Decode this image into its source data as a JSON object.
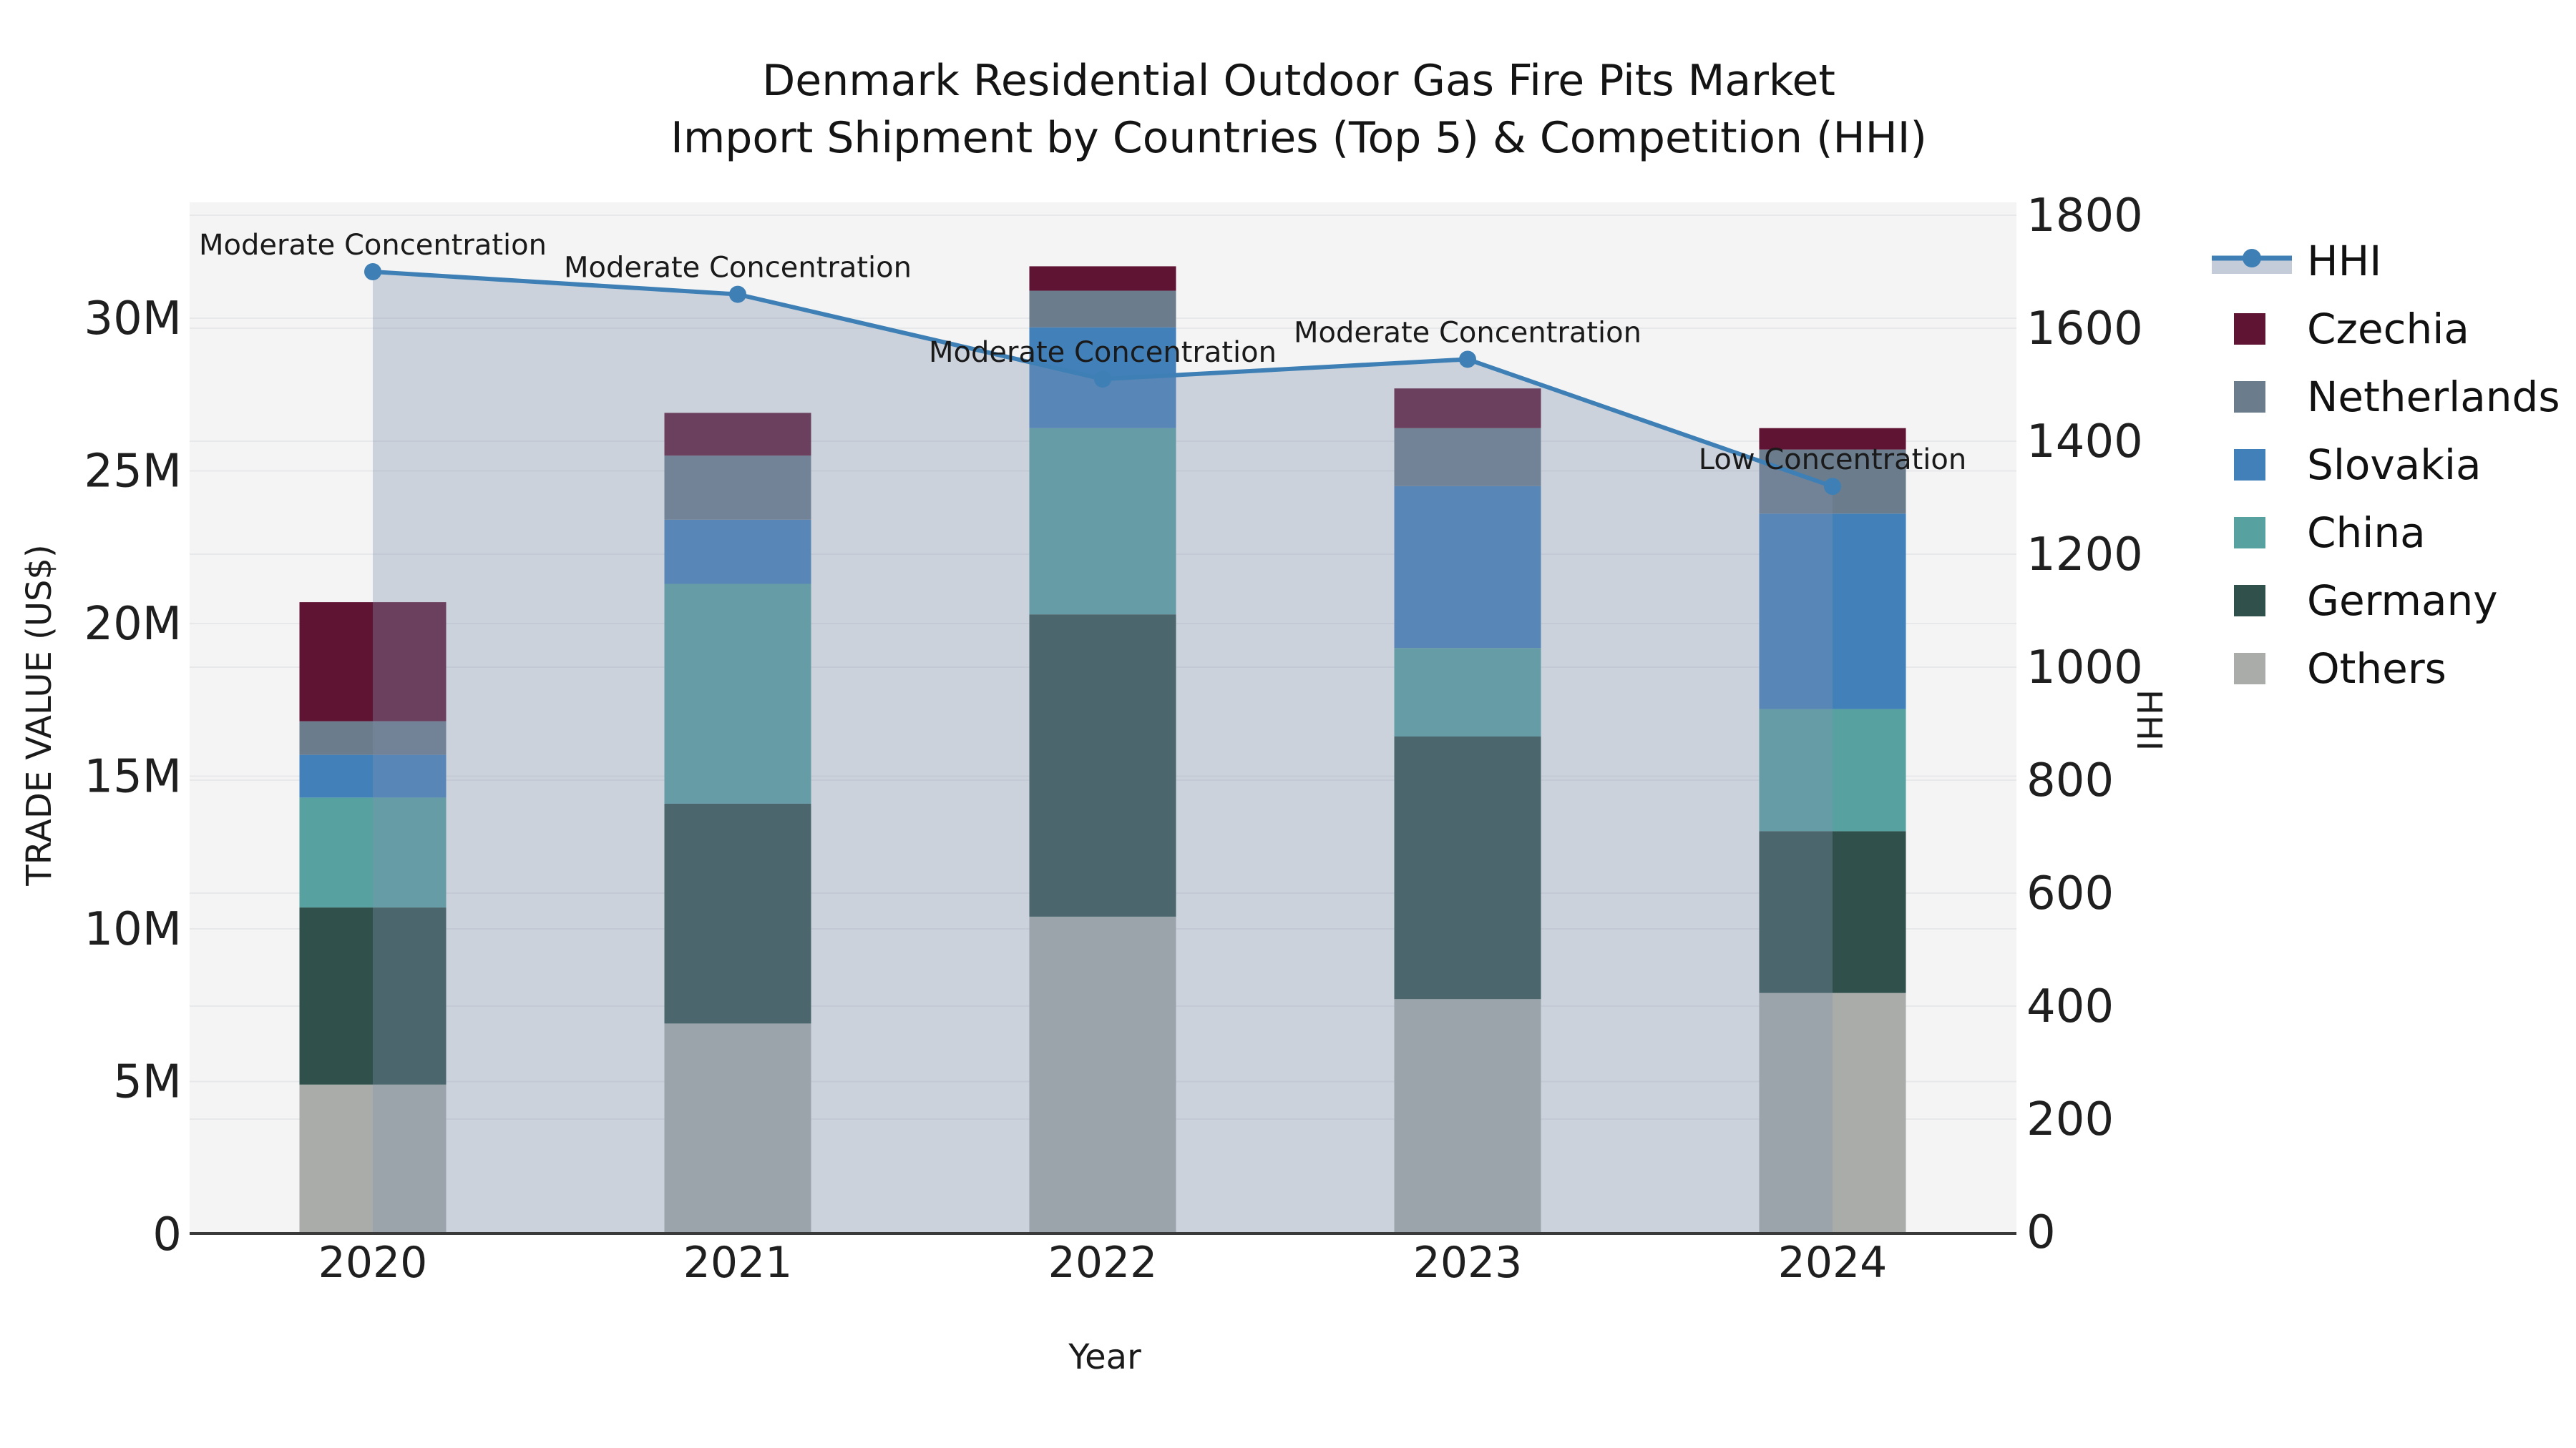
{
  "title": {
    "line1": "Denmark Residential Outdoor Gas Fire Pits Market",
    "line2": "Import Shipment by Countries (Top 5) & Competition (HHI)"
  },
  "axes": {
    "x": {
      "label": "Year",
      "categories": [
        "2020",
        "2021",
        "2022",
        "2023",
        "2024"
      ]
    },
    "y_left": {
      "label": "TRADE VALUE (US$)",
      "tick_labels": [
        "0",
        "5M",
        "10M",
        "15M",
        "20M",
        "25M",
        "30M"
      ],
      "tick_values": [
        0,
        5,
        10,
        15,
        20,
        25,
        30
      ]
    },
    "y_right": {
      "label": "HHI",
      "tick_labels": [
        "0",
        "200",
        "400",
        "600",
        "800",
        "1000",
        "1200",
        "1400",
        "1600",
        "1800"
      ],
      "tick_values": [
        0,
        200,
        400,
        600,
        800,
        1000,
        1200,
        1400,
        1600,
        1800
      ]
    }
  },
  "legend": {
    "items": [
      {
        "label": "HHI",
        "kind": "line",
        "color": "#3E80B5",
        "band_color": "#C5CCD9"
      },
      {
        "label": "Czechia",
        "kind": "patch",
        "color": "#5F1434"
      },
      {
        "label": "Netherlands",
        "kind": "patch",
        "color": "#6B7C8C"
      },
      {
        "label": "Slovakia",
        "kind": "patch",
        "color": "#4280BA"
      },
      {
        "label": "China",
        "kind": "patch",
        "color": "#57A1A0"
      },
      {
        "label": "Germany",
        "kind": "patch",
        "color": "#2F504B"
      },
      {
        "label": "Others",
        "kind": "patch",
        "color": "#A9ACA9"
      }
    ]
  },
  "chart_data": {
    "type": "combo",
    "subtype": "stacked-bar-with-line",
    "categories": [
      "2020",
      "2021",
      "2022",
      "2023",
      "2024"
    ],
    "bar_unit": "million US$",
    "bar_value_axis": "left",
    "bar_series": [
      {
        "name": "Others",
        "color": "#A9ACA9",
        "values": [
          4.9,
          6.9,
          10.4,
          7.7,
          7.9
        ]
      },
      {
        "name": "Germany",
        "color": "#2F504B",
        "values": [
          5.8,
          7.2,
          9.9,
          8.6,
          5.3
        ]
      },
      {
        "name": "China",
        "color": "#57A1A0",
        "values": [
          3.6,
          7.2,
          6.1,
          2.9,
          4.0
        ]
      },
      {
        "name": "Slovakia",
        "color": "#4280BA",
        "values": [
          1.4,
          2.1,
          3.3,
          5.3,
          6.4
        ]
      },
      {
        "name": "Netherlands",
        "color": "#6B7C8C",
        "values": [
          1.1,
          2.1,
          1.2,
          1.9,
          2.1
        ]
      },
      {
        "name": "Czechia",
        "color": "#5F1434",
        "values": [
          3.9,
          1.4,
          0.8,
          1.3,
          0.7
        ]
      }
    ],
    "bar_totals": [
      20.7,
      26.9,
      31.7,
      27.7,
      26.4
    ],
    "line_series": {
      "name": "HHI",
      "axis": "right",
      "values": [
        1700,
        1660,
        1510,
        1545,
        1320
      ],
      "color": "#3E80B5",
      "marker": "circle",
      "area_fill": "rgba(130,145,175,0.35)"
    },
    "annotations": [
      {
        "category": "2020",
        "text": "Moderate Concentration"
      },
      {
        "category": "2021",
        "text": "Moderate Concentration"
      },
      {
        "category": "2022",
        "text": "Moderate Concentration"
      },
      {
        "category": "2023",
        "text": "Moderate Concentration"
      },
      {
        "category": "2024",
        "text": "Low Concentration"
      }
    ],
    "axis_ranges": {
      "left_millions": [
        0,
        33.8
      ],
      "right_hhi": [
        0,
        1823
      ]
    },
    "grid": true,
    "legend_position": "right"
  },
  "colors": {
    "figure_bg": "#FFFFFF",
    "plot_bg": "#F4F4F5",
    "grid": "#E7E8EA",
    "spine": "#3A3A3A",
    "tick_text": "#1F1F1F",
    "annotation_text": "#1A1A1A",
    "hhi_line": "#3E80B5",
    "hhi_area": "rgba(130,145,175,0.35)"
  }
}
